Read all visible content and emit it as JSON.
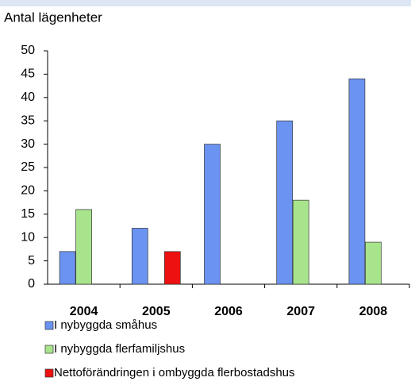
{
  "chart_data": {
    "type": "bar",
    "y_label": "Antal lägenheter",
    "categories": [
      "2004",
      "2005",
      "2006",
      "2007",
      "2008"
    ],
    "series": [
      {
        "name": "I nybyggda småhus",
        "color": "#6b93f2",
        "values": [
          7,
          12,
          30,
          35,
          44
        ]
      },
      {
        "name": "I nybyggda flerfamiljshus",
        "color": "#a8e48c",
        "values": [
          16,
          null,
          null,
          18,
          9
        ]
      },
      {
        "name": "Nettoförändringen i ombyggda flerbostadshus",
        "color": "#ee1111",
        "values": [
          null,
          7,
          null,
          null,
          null
        ]
      }
    ],
    "ylim": [
      0,
      50
    ],
    "yticks": [
      0,
      5,
      10,
      15,
      20,
      25,
      30,
      35,
      40,
      45,
      50
    ],
    "grid": false
  }
}
